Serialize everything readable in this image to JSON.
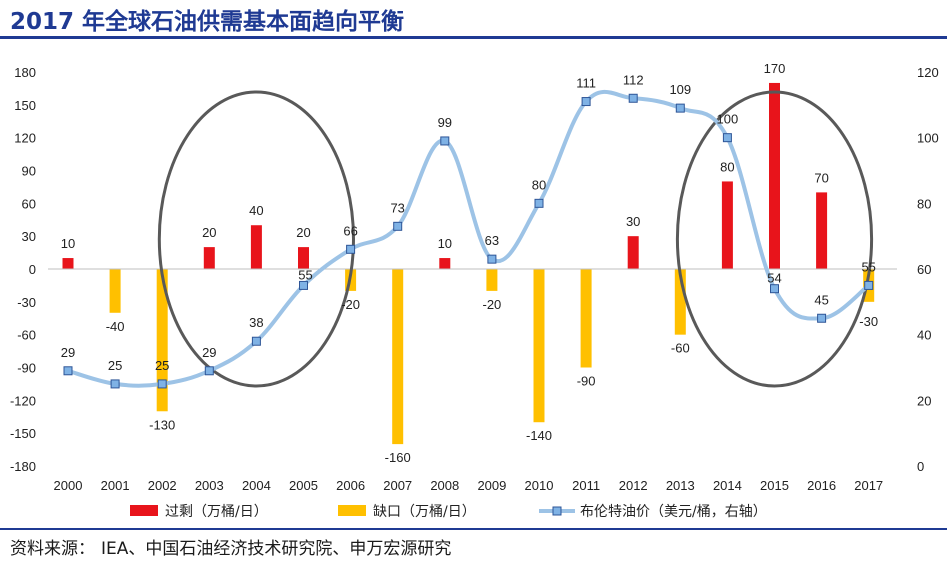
{
  "title": "2017 年全球石油供需基本面趋向平衡",
  "source": {
    "label": "资料来源：",
    "text": "IEA、中国石油经济技术研究院、申万宏源研究"
  },
  "colors": {
    "surplus": "#e8141b",
    "gap": "#ffc000",
    "brent": "#9dc3e6",
    "marker_fill": "#7fb2e5",
    "marker_stroke": "#2e5597",
    "ellipse": "#595959",
    "title": "#1f3a93"
  },
  "chart_data": {
    "type": "bar+line",
    "categories": [
      "2000",
      "2001",
      "2002",
      "2003",
      "2004",
      "2005",
      "2006",
      "2007",
      "2008",
      "2009",
      "2010",
      "2011",
      "2012",
      "2013",
      "2014",
      "2015",
      "2016",
      "2017"
    ],
    "series": [
      {
        "name": "过剩（万桶/日）",
        "type": "bar",
        "axis": "left",
        "values": [
          10,
          0,
          0,
          20,
          40,
          20,
          0,
          0,
          10,
          0,
          0,
          0,
          30,
          0,
          80,
          170,
          70,
          0
        ]
      },
      {
        "name": "缺口（万桶/日）",
        "type": "bar",
        "axis": "left",
        "values": [
          0,
          -40,
          -130,
          0,
          0,
          0,
          -20,
          -160,
          0,
          -20,
          -140,
          -90,
          0,
          -60,
          0,
          0,
          0,
          -30
        ]
      },
      {
        "name": "布伦特油价（美元/桶，右轴）",
        "type": "line",
        "axis": "right",
        "values": [
          29,
          25,
          25,
          29,
          38,
          55,
          66,
          73,
          99,
          63,
          80,
          111,
          112,
          109,
          100,
          54,
          45,
          55
        ]
      }
    ],
    "left_axis": {
      "min": -180,
      "max": 180,
      "ticks": [
        180,
        150,
        120,
        90,
        60,
        30,
        0,
        -30,
        -60,
        -90,
        -120,
        -150,
        -180
      ]
    },
    "right_axis": {
      "min": 0,
      "max": 120,
      "ticks": [
        120,
        100,
        80,
        60,
        40,
        20,
        0
      ]
    },
    "bar_labels": [
      {
        "category": "2000",
        "value": 10
      },
      {
        "category": "2001",
        "value": -40
      },
      {
        "category": "2002",
        "value": -130
      },
      {
        "category": "2003",
        "value": 20
      },
      {
        "category": "2004",
        "value": 40
      },
      {
        "category": "2005",
        "value": 20
      },
      {
        "category": "2006",
        "value": -20
      },
      {
        "category": "2007",
        "value": -160
      },
      {
        "category": "2008",
        "value": 10
      },
      {
        "category": "2009",
        "value": -20
      },
      {
        "category": "2010",
        "value": -140
      },
      {
        "category": "2011",
        "value": -90
      },
      {
        "category": "2012",
        "value": 30
      },
      {
        "category": "2013",
        "value": -60
      },
      {
        "category": "2014",
        "value": 80
      },
      {
        "category": "2015",
        "value": 170
      },
      {
        "category": "2016",
        "value": 70
      },
      {
        "category": "2017",
        "value": -30
      }
    ],
    "legend": [
      "过剩（万桶/日）",
      "缺口（万桶/日）",
      "布伦特油价（美元/桶，右轴）"
    ],
    "highlights": [
      {
        "from": "2003",
        "to": "2005"
      },
      {
        "from": "2014",
        "to": "2016"
      }
    ]
  }
}
